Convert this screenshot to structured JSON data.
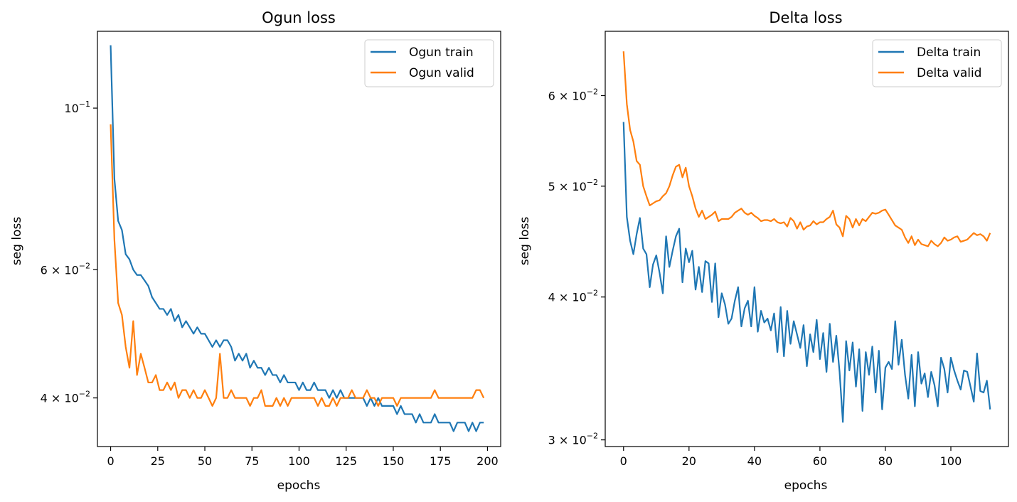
{
  "chart_data": [
    {
      "type": "line",
      "title": "Ogun loss",
      "xlabel": "epochs",
      "ylabel": "seg loss",
      "yscale": "log",
      "xlim": [
        -7,
        207
      ],
      "ylim": [
        0.0343,
        0.1275
      ],
      "xticks": [
        0,
        25,
        50,
        75,
        100,
        125,
        150,
        175,
        200
      ],
      "yticks": [
        {
          "value": 0.1,
          "base": "10",
          "exp": "−1"
        },
        {
          "value": 0.06,
          "base": "6 × 10",
          "exp": "−2"
        },
        {
          "value": 0.04,
          "base": "4 × 10",
          "exp": "−2"
        }
      ],
      "legend_position": "top-right",
      "series": [
        {
          "name": "Ogun train",
          "color": "#1f77b4",
          "x": [
            0,
            2,
            4,
            6,
            8,
            10,
            12,
            14,
            16,
            18,
            20,
            22,
            24,
            26,
            28,
            30,
            32,
            34,
            36,
            38,
            40,
            42,
            44,
            46,
            48,
            50,
            52,
            54,
            56,
            58,
            60,
            62,
            64,
            66,
            68,
            70,
            72,
            74,
            76,
            78,
            80,
            82,
            84,
            86,
            88,
            90,
            92,
            94,
            96,
            98,
            100,
            102,
            104,
            106,
            108,
            110,
            112,
            114,
            116,
            118,
            120,
            122,
            124,
            126,
            128,
            130,
            132,
            134,
            136,
            138,
            140,
            142,
            144,
            146,
            148,
            150,
            152,
            154,
            156,
            158,
            160,
            162,
            164,
            166,
            168,
            170,
            172,
            174,
            176,
            178,
            180,
            182,
            184,
            186,
            188,
            190,
            192,
            194,
            196,
            198
          ],
          "values": [
            0.122,
            0.08,
            0.07,
            0.068,
            0.063,
            0.062,
            0.06,
            0.059,
            0.059,
            0.058,
            0.057,
            0.055,
            0.054,
            0.053,
            0.053,
            0.052,
            0.053,
            0.051,
            0.052,
            0.05,
            0.051,
            0.05,
            0.049,
            0.05,
            0.049,
            0.049,
            0.048,
            0.047,
            0.048,
            0.047,
            0.048,
            0.048,
            0.047,
            0.045,
            0.046,
            0.045,
            0.046,
            0.044,
            0.045,
            0.044,
            0.044,
            0.043,
            0.044,
            0.043,
            0.043,
            0.042,
            0.043,
            0.042,
            0.042,
            0.042,
            0.041,
            0.042,
            0.041,
            0.041,
            0.042,
            0.041,
            0.041,
            0.041,
            0.04,
            0.041,
            0.04,
            0.041,
            0.04,
            0.04,
            0.04,
            0.04,
            0.04,
            0.04,
            0.039,
            0.04,
            0.039,
            0.04,
            0.039,
            0.039,
            0.039,
            0.039,
            0.038,
            0.039,
            0.038,
            0.038,
            0.038,
            0.037,
            0.038,
            0.037,
            0.037,
            0.037,
            0.038,
            0.037,
            0.037,
            0.037,
            0.037,
            0.036,
            0.037,
            0.037,
            0.037,
            0.036,
            0.037,
            0.036,
            0.037,
            0.037
          ]
        },
        {
          "name": "Ogun valid",
          "color": "#ff7f0e",
          "x": [
            0,
            2,
            4,
            6,
            8,
            10,
            12,
            14,
            16,
            18,
            20,
            22,
            24,
            26,
            28,
            30,
            32,
            34,
            36,
            38,
            40,
            42,
            44,
            46,
            48,
            50,
            52,
            54,
            56,
            58,
            60,
            62,
            64,
            66,
            68,
            70,
            72,
            74,
            76,
            78,
            80,
            82,
            84,
            86,
            88,
            90,
            92,
            94,
            96,
            98,
            100,
            102,
            104,
            106,
            108,
            110,
            112,
            114,
            116,
            118,
            120,
            122,
            124,
            126,
            128,
            130,
            132,
            134,
            136,
            138,
            140,
            142,
            144,
            146,
            148,
            150,
            152,
            154,
            156,
            158,
            160,
            162,
            164,
            166,
            168,
            170,
            172,
            174,
            176,
            178,
            180,
            182,
            184,
            186,
            188,
            190,
            192,
            194,
            196,
            198
          ],
          "values": [
            0.095,
            0.066,
            0.054,
            0.052,
            0.047,
            0.044,
            0.051,
            0.043,
            0.046,
            0.044,
            0.042,
            0.042,
            0.043,
            0.041,
            0.041,
            0.042,
            0.041,
            0.042,
            0.04,
            0.041,
            0.041,
            0.04,
            0.041,
            0.04,
            0.04,
            0.041,
            0.04,
            0.039,
            0.04,
            0.046,
            0.04,
            0.04,
            0.041,
            0.04,
            0.04,
            0.04,
            0.04,
            0.039,
            0.04,
            0.04,
            0.041,
            0.039,
            0.039,
            0.039,
            0.04,
            0.039,
            0.04,
            0.039,
            0.04,
            0.04,
            0.04,
            0.04,
            0.04,
            0.04,
            0.04,
            0.039,
            0.04,
            0.039,
            0.039,
            0.04,
            0.039,
            0.04,
            0.04,
            0.04,
            0.041,
            0.04,
            0.04,
            0.04,
            0.041,
            0.04,
            0.04,
            0.039,
            0.04,
            0.04,
            0.04,
            0.04,
            0.039,
            0.04,
            0.04,
            0.04,
            0.04,
            0.04,
            0.04,
            0.04,
            0.04,
            0.04,
            0.041,
            0.04,
            0.04,
            0.04,
            0.04,
            0.04,
            0.04,
            0.04,
            0.04,
            0.04,
            0.04,
            0.041,
            0.041,
            0.04
          ]
        }
      ]
    },
    {
      "type": "line",
      "title": "Delta loss",
      "xlabel": "epochs",
      "ylabel": "seg loss",
      "yscale": "log",
      "xlim": [
        -5.6,
        117.6
      ],
      "ylim": [
        0.0296,
        0.0683
      ],
      "xticks": [
        0,
        20,
        40,
        60,
        80,
        100
      ],
      "yticks": [
        {
          "value": 0.06,
          "base": "6 × 10",
          "exp": "−2"
        },
        {
          "value": 0.05,
          "base": "5 × 10",
          "exp": "−2"
        },
        {
          "value": 0.04,
          "base": "4 × 10",
          "exp": "−2"
        },
        {
          "value": 0.03,
          "base": "3 × 10",
          "exp": "−2"
        }
      ],
      "legend_position": "top-right",
      "series": [
        {
          "name": "Delta train",
          "color": "#1f77b4",
          "x": [
            0,
            1,
            2,
            3,
            4,
            5,
            6,
            7,
            8,
            9,
            10,
            11,
            12,
            13,
            14,
            15,
            16,
            17,
            18,
            19,
            20,
            21,
            22,
            23,
            24,
            25,
            26,
            27,
            28,
            29,
            30,
            31,
            32,
            33,
            34,
            35,
            36,
            37,
            38,
            39,
            40,
            41,
            42,
            43,
            44,
            45,
            46,
            47,
            48,
            49,
            50,
            51,
            52,
            53,
            54,
            55,
            56,
            57,
            58,
            59,
            60,
            61,
            62,
            63,
            64,
            65,
            66,
            67,
            68,
            69,
            70,
            71,
            72,
            73,
            74,
            75,
            76,
            77,
            78,
            79,
            80,
            81,
            82,
            83,
            84,
            85,
            86,
            87,
            88,
            89,
            90,
            91,
            92,
            93,
            94,
            95,
            96,
            97,
            98,
            99,
            100,
            101,
            102,
            103,
            104,
            105,
            106,
            107,
            108,
            109,
            110,
            111,
            112
          ],
          "values": [
            0.0569,
            0.047,
            0.0448,
            0.0436,
            0.0454,
            0.0469,
            0.0441,
            0.0436,
            0.0408,
            0.0427,
            0.0435,
            0.042,
            0.0403,
            0.0452,
            0.0425,
            0.0439,
            0.0452,
            0.0459,
            0.0412,
            0.0441,
            0.0429,
            0.0439,
            0.0406,
            0.0425,
            0.0404,
            0.043,
            0.0428,
            0.0396,
            0.0428,
            0.0384,
            0.0403,
            0.0394,
            0.0379,
            0.0383,
            0.0397,
            0.0408,
            0.0377,
            0.0391,
            0.0397,
            0.0377,
            0.0408,
            0.0373,
            0.0389,
            0.038,
            0.0383,
            0.0374,
            0.0387,
            0.0358,
            0.0392,
            0.0355,
            0.0389,
            0.0364,
            0.0381,
            0.0371,
            0.0361,
            0.0378,
            0.0348,
            0.0371,
            0.0358,
            0.0382,
            0.0353,
            0.0372,
            0.0344,
            0.0379,
            0.0351,
            0.037,
            0.0344,
            0.0311,
            0.0366,
            0.0345,
            0.0365,
            0.0334,
            0.036,
            0.0318,
            0.0358,
            0.0342,
            0.0362,
            0.033,
            0.0359,
            0.0319,
            0.0347,
            0.0351,
            0.0346,
            0.0381,
            0.0349,
            0.0367,
            0.0342,
            0.0326,
            0.0356,
            0.0321,
            0.0358,
            0.0336,
            0.0343,
            0.0327,
            0.0344,
            0.0335,
            0.0321,
            0.0354,
            0.0346,
            0.033,
            0.0354,
            0.0345,
            0.0338,
            0.0332,
            0.0345,
            0.0344,
            0.0334,
            0.0324,
            0.0357,
            0.0331,
            0.033,
            0.0338,
            0.0319
          ]
        },
        {
          "name": "Delta valid",
          "color": "#ff7f0e",
          "x": [
            0,
            1,
            2,
            3,
            4,
            5,
            6,
            7,
            8,
            9,
            10,
            11,
            12,
            13,
            14,
            15,
            16,
            17,
            18,
            19,
            20,
            21,
            22,
            23,
            24,
            25,
            26,
            27,
            28,
            29,
            30,
            31,
            32,
            33,
            34,
            35,
            36,
            37,
            38,
            39,
            40,
            41,
            42,
            43,
            44,
            45,
            46,
            47,
            48,
            49,
            50,
            51,
            52,
            53,
            54,
            55,
            56,
            57,
            58,
            59,
            60,
            61,
            62,
            63,
            64,
            65,
            66,
            67,
            68,
            69,
            70,
            71,
            72,
            73,
            74,
            75,
            76,
            77,
            78,
            79,
            80,
            81,
            82,
            83,
            84,
            85,
            86,
            87,
            88,
            89,
            90,
            91,
            92,
            93,
            94,
            95,
            96,
            97,
            98,
            99,
            100,
            101,
            102,
            103,
            104,
            105,
            106,
            107,
            108,
            109,
            110,
            111,
            112
          ],
          "values": [
            0.0656,
            0.059,
            0.056,
            0.0547,
            0.0526,
            0.0522,
            0.05,
            0.049,
            0.0481,
            0.0483,
            0.0485,
            0.0486,
            0.049,
            0.0493,
            0.05,
            0.0511,
            0.052,
            0.0522,
            0.0509,
            0.0519,
            0.05,
            0.049,
            0.0478,
            0.047,
            0.0476,
            0.0468,
            0.047,
            0.0472,
            0.0475,
            0.0466,
            0.0468,
            0.0468,
            0.0468,
            0.047,
            0.0474,
            0.0476,
            0.0478,
            0.0474,
            0.0472,
            0.0474,
            0.0471,
            0.0469,
            0.0466,
            0.0467,
            0.0467,
            0.0466,
            0.0468,
            0.0465,
            0.0464,
            0.0465,
            0.0461,
            0.0469,
            0.0466,
            0.0459,
            0.0465,
            0.0458,
            0.0461,
            0.0462,
            0.0466,
            0.0463,
            0.0465,
            0.0465,
            0.0468,
            0.047,
            0.0476,
            0.0463,
            0.046,
            0.0452,
            0.0471,
            0.0468,
            0.046,
            0.0468,
            0.0462,
            0.0468,
            0.0466,
            0.047,
            0.0474,
            0.0473,
            0.0474,
            0.0476,
            0.0477,
            0.0472,
            0.0467,
            0.0462,
            0.046,
            0.0458,
            0.0451,
            0.0446,
            0.0452,
            0.0444,
            0.0449,
            0.0445,
            0.0444,
            0.0443,
            0.0448,
            0.0445,
            0.0443,
            0.0446,
            0.0451,
            0.0448,
            0.0449,
            0.0451,
            0.0452,
            0.0447,
            0.0448,
            0.0449,
            0.0452,
            0.0455,
            0.0453,
            0.0454,
            0.0452,
            0.0448,
            0.0455
          ]
        }
      ]
    }
  ]
}
